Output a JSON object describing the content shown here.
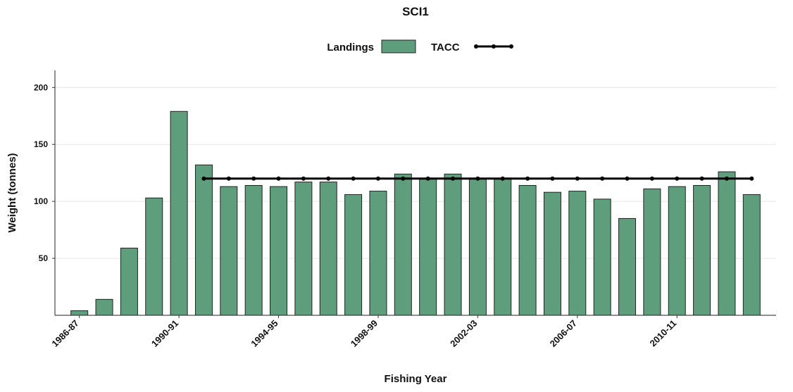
{
  "chart_data": {
    "type": "bar",
    "title": "SCI1",
    "x_label": "Fishing Year",
    "y_label": "Weight (tonnes)",
    "categories": [
      "1986-87",
      null,
      null,
      null,
      "1990-91",
      null,
      null,
      null,
      "1994-95",
      null,
      null,
      null,
      "1998-99",
      null,
      null,
      null,
      "2002-03",
      null,
      null,
      null,
      "2006-07",
      null,
      null,
      null,
      "2010-11",
      null,
      null,
      null
    ],
    "series": [
      {
        "name": "Landings",
        "type": "bar",
        "color": "#5f9e7c",
        "values": [
          4,
          14,
          59,
          103,
          179,
          132,
          113,
          114,
          113,
          117,
          117,
          106,
          109,
          124,
          120,
          124,
          120,
          120,
          114,
          108,
          109,
          102,
          85,
          111,
          113,
          114,
          126,
          106
        ]
      },
      {
        "name": "TACC",
        "type": "line",
        "color": "#000000",
        "values": [
          null,
          null,
          null,
          null,
          null,
          120,
          120,
          120,
          120,
          120,
          120,
          120,
          120,
          120,
          120,
          120,
          120,
          120,
          120,
          120,
          120,
          120,
          120,
          120,
          120,
          120,
          120,
          120
        ]
      }
    ],
    "ylim": [
      0,
      215
    ],
    "yticks": [
      50,
      100,
      150,
      200
    ],
    "grid": true,
    "legend": "top"
  }
}
